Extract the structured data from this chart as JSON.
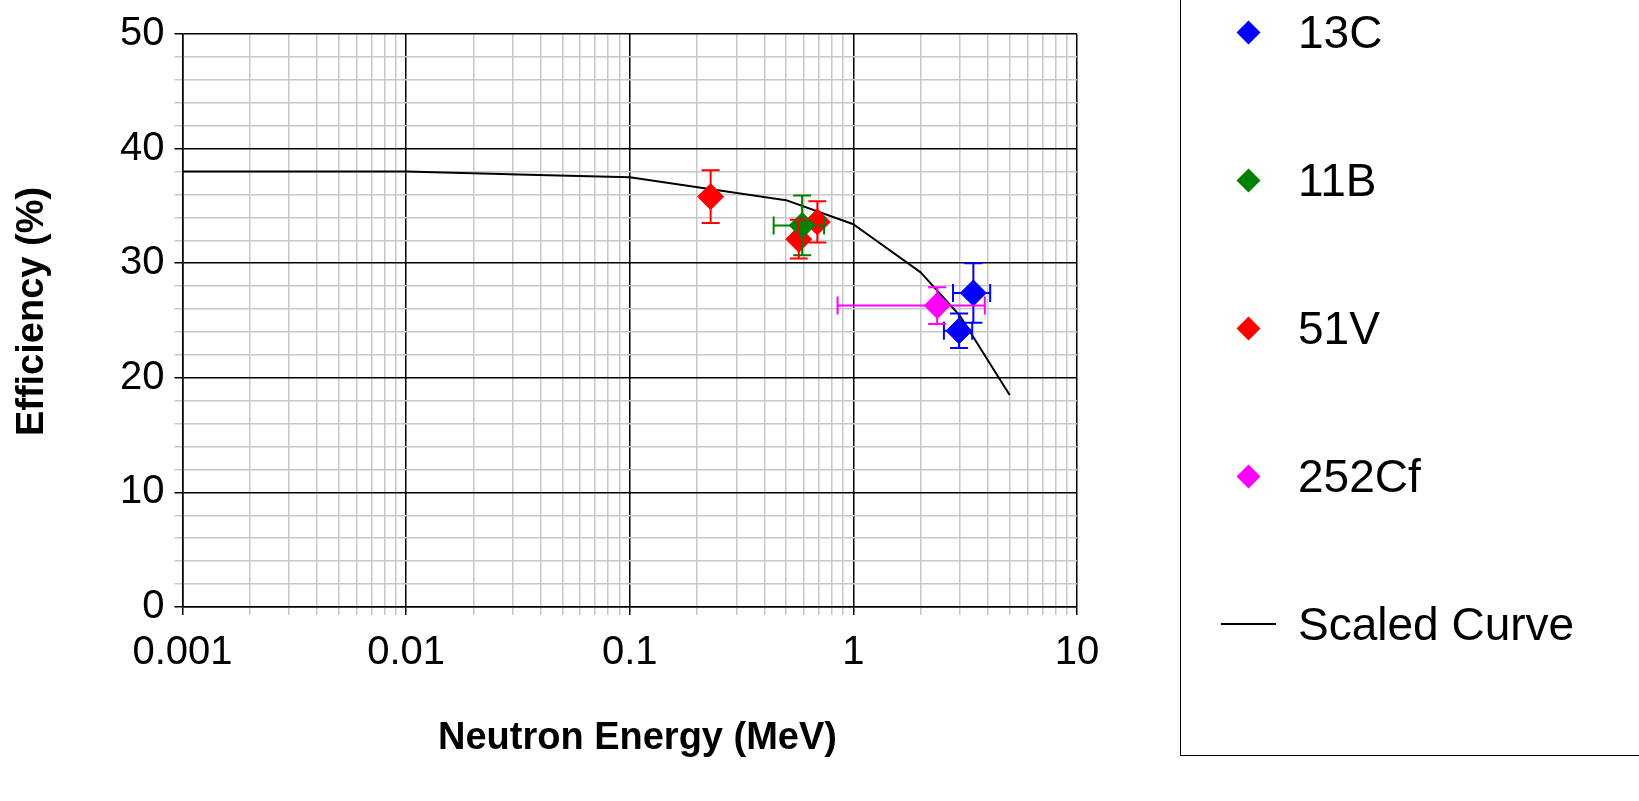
{
  "chart_data": {
    "type": "scatter",
    "xlabel": "Neutron Energy (MeV)",
    "ylabel": "Efficiency (%)",
    "log": "x",
    "grid": true,
    "legend": "right",
    "marker": "diamond",
    "xlim": [
      0.001,
      10
    ],
    "xticks": [
      0.001,
      {
        "value": 0.002,
        "label": null
      },
      {
        "value": 0.003,
        "label": null
      },
      {
        "value": 0.004,
        "label": null
      },
      {
        "value": 0.005,
        "label": null
      },
      {
        "value": 0.006,
        "label": null
      },
      {
        "value": 0.007,
        "label": null
      },
      {
        "value": 0.008,
        "label": null
      },
      {
        "value": 0.009,
        "label": null
      },
      0.01,
      {
        "value": 0.02,
        "label": null
      },
      {
        "value": 0.03,
        "label": null
      },
      {
        "value": 0.04,
        "label": null
      },
      {
        "value": 0.05,
        "label": null
      },
      {
        "value": 0.06,
        "label": null
      },
      {
        "value": 0.07,
        "label": null
      },
      {
        "value": 0.08,
        "label": null
      },
      {
        "value": 0.09,
        "label": null
      },
      0.1,
      {
        "value": 0.2,
        "label": null
      },
      {
        "value": 0.3,
        "label": null
      },
      {
        "value": 0.4,
        "label": null
      },
      {
        "value": 0.5,
        "label": null
      },
      {
        "value": 0.6,
        "label": null
      },
      {
        "value": 0.7,
        "label": null
      },
      {
        "value": 0.8,
        "label": null
      },
      {
        "value": 0.9,
        "label": null
      },
      1,
      {
        "value": 2,
        "label": null
      },
      {
        "value": 3,
        "label": null
      },
      {
        "value": 4,
        "label": null
      },
      {
        "value": 5,
        "label": null
      },
      {
        "value": 6,
        "label": null
      },
      {
        "value": 7,
        "label": null
      },
      {
        "value": 8,
        "label": null
      },
      {
        "value": 9,
        "label": null
      },
      10
    ],
    "ylim": [
      0,
      50
    ],
    "yticks": [
      0,
      {
        "value": 2,
        "label": null
      },
      {
        "value": 4,
        "label": null
      },
      {
        "value": 6,
        "label": null
      },
      {
        "value": 8,
        "label": null
      },
      10,
      {
        "value": 12,
        "label": null
      },
      {
        "value": 14,
        "label": null
      },
      {
        "value": 16,
        "label": null
      },
      {
        "value": 18,
        "label": null
      },
      20,
      {
        "value": 22,
        "label": null
      },
      {
        "value": 24,
        "label": null
      },
      {
        "value": 26,
        "label": null
      },
      {
        "value": 28,
        "label": null
      },
      30,
      {
        "value": 32,
        "label": null
      },
      {
        "value": 34,
        "label": null
      },
      {
        "value": 36,
        "label": null
      },
      {
        "value": 38,
        "label": null
      },
      40,
      {
        "value": 42,
        "label": null
      },
      {
        "value": 44,
        "label": null
      },
      {
        "value": 46,
        "label": null
      },
      {
        "value": 48,
        "label": null
      },
      50
    ],
    "series": [
      {
        "name": "13C",
        "color": "#0000ff",
        "x": [
          3.44,
          2.97
        ],
        "values": [
          27.4,
          24.1
        ],
        "errors": [
          2.6,
          1.5
        ],
        "xerrors": [
          0.65,
          0.43
        ]
      },
      {
        "name": "11B",
        "color": "#008000",
        "x": [
          0.59
        ],
        "values": [
          33.3
        ],
        "errors": [
          2.6
        ],
        "xerrors": [
          0.15
        ]
      },
      {
        "name": "51V",
        "color": "#ff0000",
        "x": [
          0.23,
          0.57,
          0.69
        ],
        "values": [
          35.8,
          32.1,
          33.6
        ],
        "errors": [
          2.3,
          1.7,
          1.8
        ]
      },
      {
        "name": "252Cf",
        "color": "#ff00ff",
        "x": [
          2.37
        ],
        "values": [
          26.3
        ],
        "errors": [
          1.6
        ],
        "xerrors": [
          [
            0.85,
            3.87
          ]
        ]
      },
      {
        "name": "Scaled Curve",
        "type": "line",
        "color": "#000000",
        "marker": "none",
        "x": [
          0.001,
          0.01,
          0.1,
          0.5,
          1,
          2,
          3,
          5
        ],
        "values": [
          38.0,
          38.0,
          37.5,
          35.5,
          33.4,
          29.2,
          25.4,
          18.5
        ]
      }
    ]
  }
}
